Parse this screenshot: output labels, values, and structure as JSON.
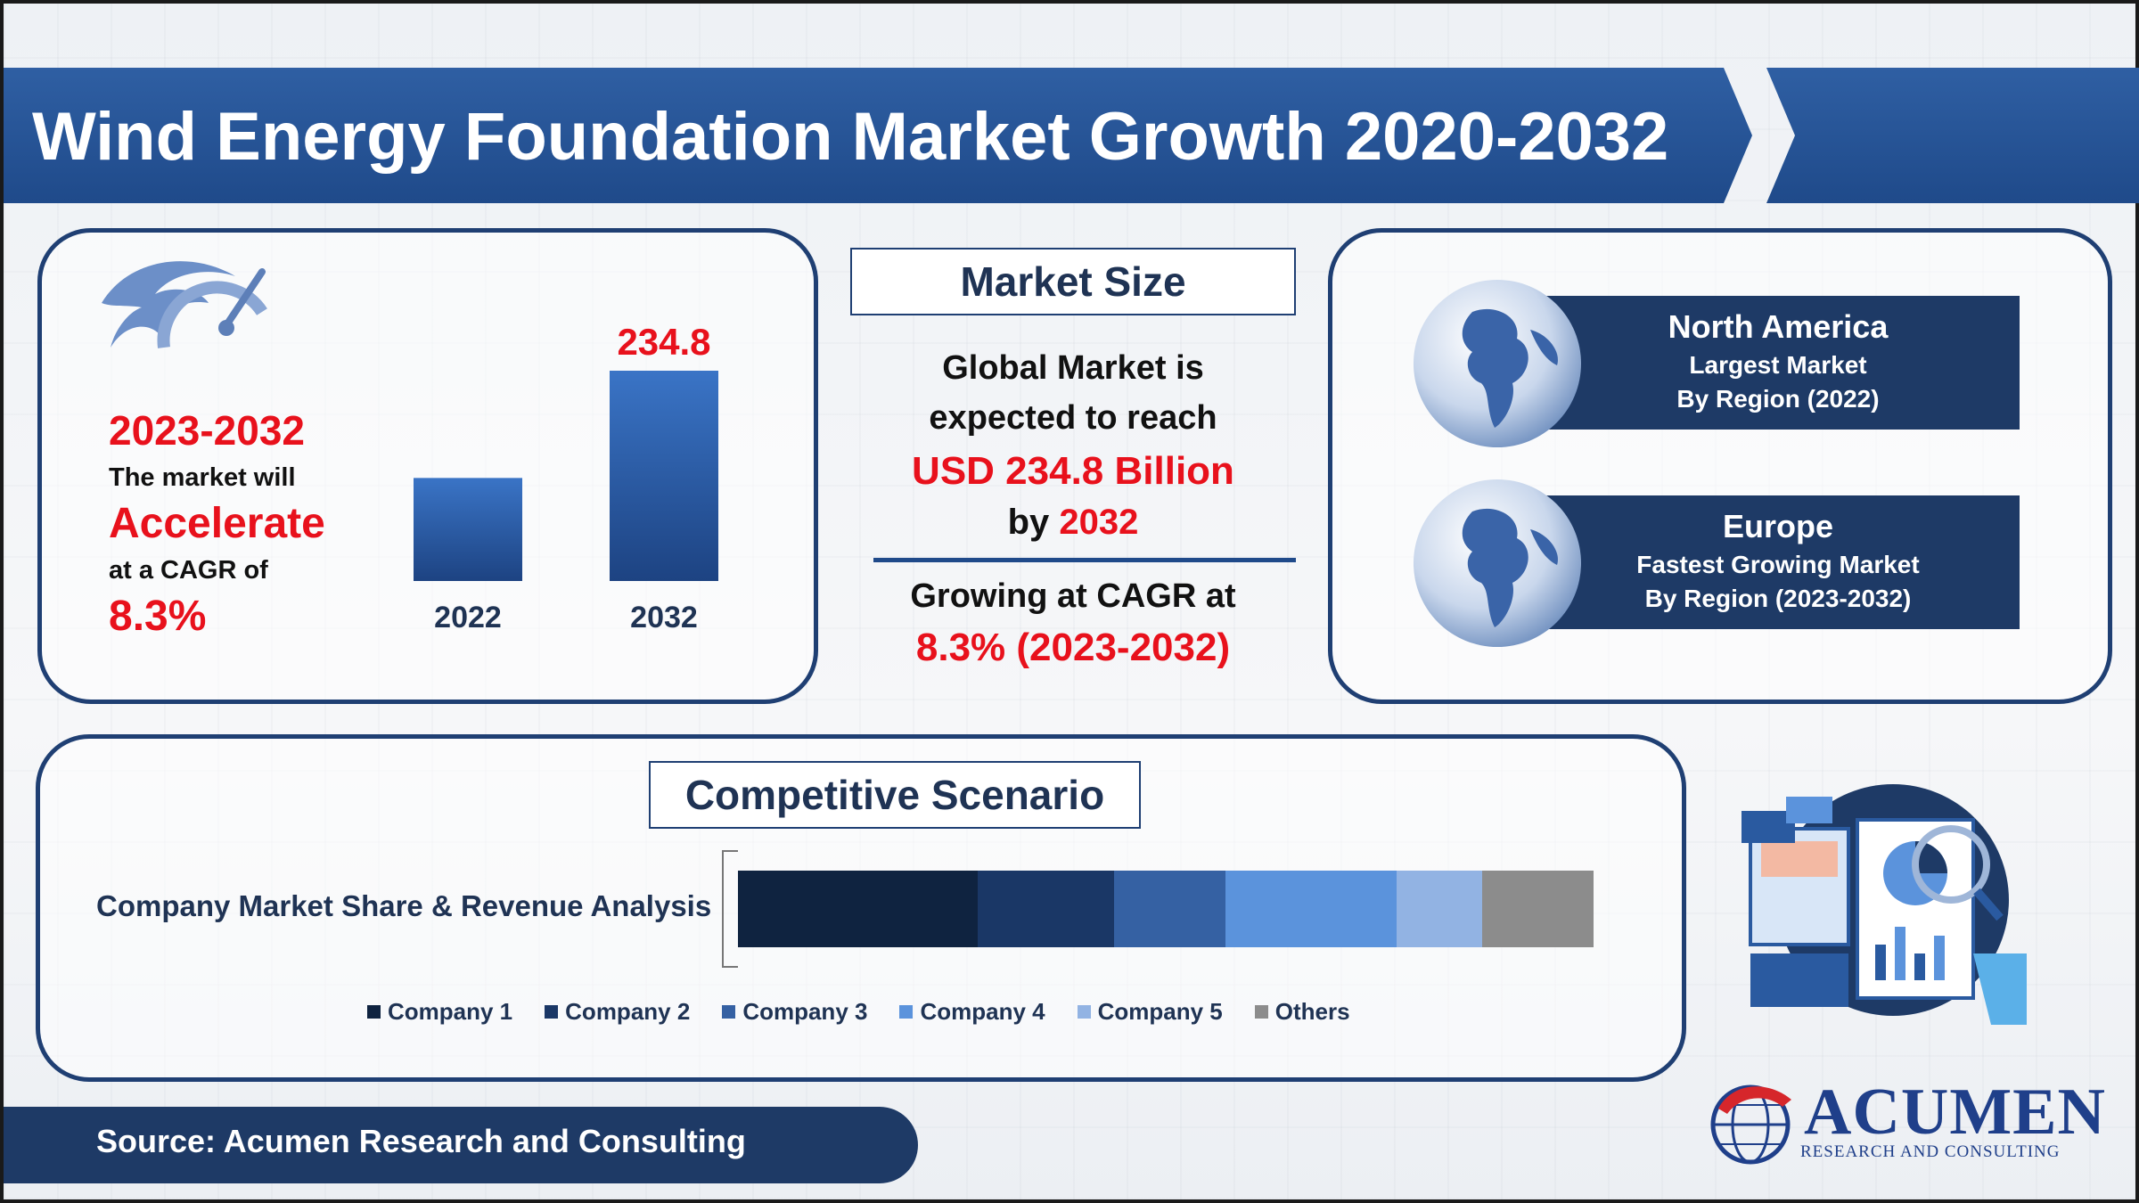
{
  "title": "Wind Energy Foundation Market Growth 2020-2032",
  "growth": {
    "period": "2023-2032",
    "line1": "The market will",
    "accelerate": "Accelerate",
    "line2": "at a CAGR of",
    "cagr": "8.3%"
  },
  "chart_data": {
    "type": "bar",
    "categories": [
      "2022",
      "2032"
    ],
    "values": [
      null,
      234.8
    ],
    "data_labels": [
      "",
      "234.8"
    ],
    "relative_heights": [
      0.49,
      1.0
    ],
    "colors": [
      "#2f64b8",
      "#2f64b8"
    ]
  },
  "market_size": {
    "heading": "Market Size",
    "line1": "Global Market is",
    "line2": "expected to reach",
    "value": "USD 234.8 Billion",
    "by_prefix": "by ",
    "by_year": "2032",
    "growing": "Growing at CAGR at",
    "cagr": "8.3% (2023-2032)"
  },
  "regions": [
    {
      "name": "North America",
      "sub1": "Largest Market",
      "sub2": "By Region (2022)"
    },
    {
      "name": "Europe",
      "sub1": "Fastest Growing Market",
      "sub2": "By Region (2023-2032)"
    }
  ],
  "competitive": {
    "heading": "Competitive Scenario",
    "label": "Company Market Share & Revenue Analysis",
    "segments": [
      {
        "name": "Company 1",
        "color": "#0f2340",
        "share": 0.28
      },
      {
        "name": "Company 2",
        "color": "#1a3766",
        "share": 0.16
      },
      {
        "name": "Company 3",
        "color": "#3561a3",
        "share": 0.13
      },
      {
        "name": "Company 4",
        "color": "#5b93dc",
        "share": 0.2
      },
      {
        "name": "Company 5",
        "color": "#92b3e3",
        "share": 0.1
      },
      {
        "name": "Others",
        "color": "#8c8c8c",
        "share": 0.13
      }
    ]
  },
  "source": "Source: Acumen Research and Consulting",
  "logo": {
    "name": "Acumen",
    "sub": "RESEARCH AND CONSULTING"
  }
}
